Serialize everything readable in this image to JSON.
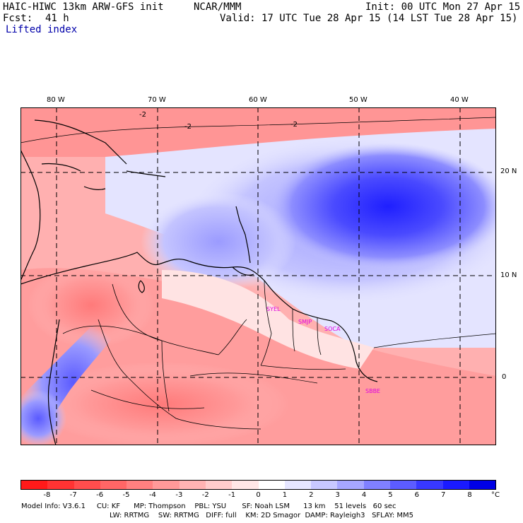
{
  "header": {
    "model": "HAIC-HIWC 13km ARW-GFS init",
    "org": "NCAR/MMM",
    "init": "Init: 00 UTC Mon 27 Apr 15",
    "fcst_label": "Fcst:",
    "fcst_hours": "41 h",
    "valid": "Valid: 17 UTC Tue 28 Apr 15 (14 LST Tue 28 Apr 15)",
    "field": "Lifted index"
  },
  "map": {
    "lon_labels": [
      "80 W",
      "70 W",
      "60 W",
      "50 W",
      "40 W"
    ],
    "lat_labels": [
      "20 N",
      "10 N",
      "0"
    ],
    "contour_label": "-2",
    "stations": [
      "SYEL",
      "SMJP",
      "SOCA",
      "SBBE"
    ],
    "colors": {
      "strong_unstable": "#ff0000",
      "neutral": "#ffffff",
      "strong_stable": "#0000ff"
    }
  },
  "colorbar": {
    "labels": [
      "-8",
      "-7",
      "-6",
      "-5",
      "-4",
      "-3",
      "-2",
      "-1",
      "0",
      "1",
      "2",
      "3",
      "4",
      "5",
      "6",
      "7",
      "8"
    ],
    "unit": "°C",
    "colors": [
      "#ff1a1a",
      "#ff3333",
      "#ff4d4d",
      "#ff6666",
      "#ff8080",
      "#ff9999",
      "#ffb3b3",
      "#ffcccc",
      "#ffe6e6",
      "#ffffff",
      "#e6e6ff",
      "#c8c8ff",
      "#a6a6ff",
      "#8080ff",
      "#5c5cff",
      "#3838ff",
      "#1a1aff",
      "#0000e6"
    ]
  },
  "model_info": {
    "line1": "Model Info: V3.6.1     CU: KF      MP: Thompson    PBL: YSU       SF: Noah LSM      13 km    51 levels   60 sec",
    "line2": "LW: RRTMG    SW: RRTMG   DIFF: full    KM: 2D Smagor  DAMP: Rayleigh3   SFLAY: MM5"
  }
}
